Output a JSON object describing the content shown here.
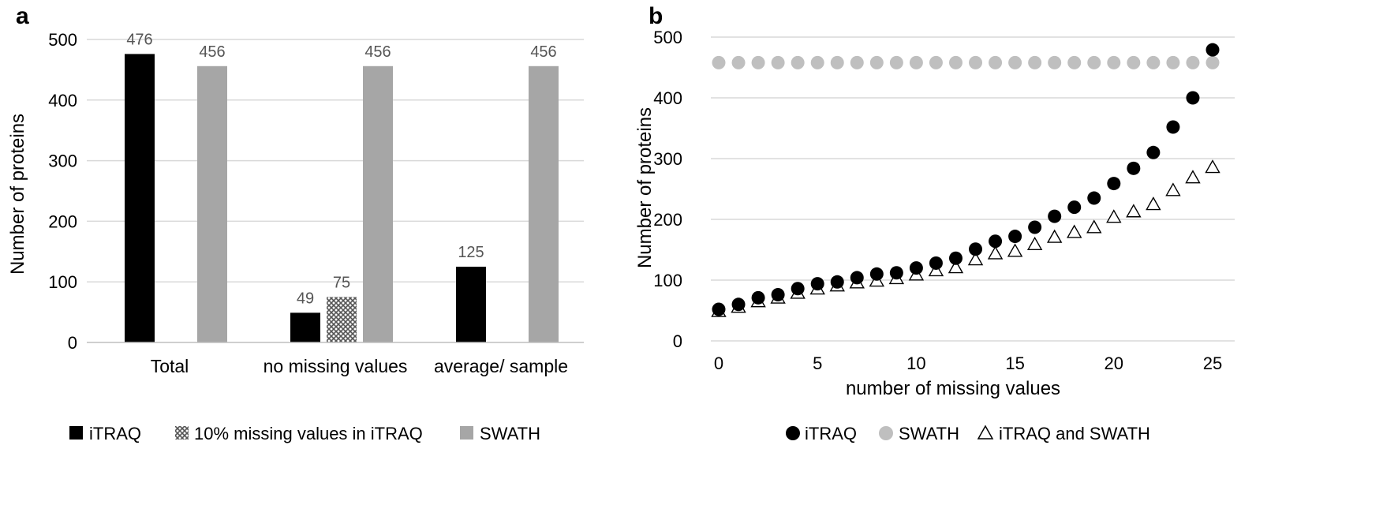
{
  "colors": {
    "itraq": "#000000",
    "swath": "#a6a6a6",
    "swath_marker": "#bfbfbf",
    "missing10": "#808080",
    "grid": "#d9d9d9",
    "label": "#555555"
  },
  "chart_data": [
    {
      "panel": "a",
      "type": "bar",
      "ylabel": "Number of proteins",
      "ylim": [
        0,
        500
      ],
      "yticks": [
        "0",
        "100",
        "200",
        "300",
        "400",
        "500"
      ],
      "categories": [
        "Total",
        "no missing values",
        "average/ sample"
      ],
      "series": [
        {
          "name": "iTRAQ",
          "values": [
            476,
            49,
            125
          ],
          "labels": [
            "476",
            "49",
            "125"
          ]
        },
        {
          "name": "10% missing values in iTRAQ",
          "values": [
            null,
            75,
            null
          ],
          "labels": [
            "",
            "75",
            ""
          ]
        },
        {
          "name": "SWATH",
          "values": [
            456,
            456,
            456
          ],
          "labels": [
            "456",
            "456",
            "456"
          ]
        }
      ],
      "legend": [
        "iTRAQ",
        "10% missing values in iTRAQ",
        "SWATH"
      ],
      "legend_position": "bottom"
    },
    {
      "panel": "b",
      "type": "scatter",
      "xlabel": "number of missing values",
      "ylabel": "Number of proteins",
      "xlim": [
        0,
        25
      ],
      "ylim": [
        0,
        500
      ],
      "xticks": [
        "0",
        "5",
        "10",
        "15",
        "20",
        "25"
      ],
      "yticks": [
        "0",
        "100",
        "200",
        "300",
        "400",
        "500"
      ],
      "x": [
        0,
        1,
        2,
        3,
        4,
        5,
        6,
        7,
        8,
        9,
        10,
        11,
        12,
        13,
        14,
        15,
        16,
        17,
        18,
        19,
        20,
        21,
        22,
        23,
        24,
        25
      ],
      "series": [
        {
          "name": "iTRAQ",
          "marker": "filled-circle",
          "values": [
            52,
            60,
            71,
            76,
            86,
            94,
            97,
            104,
            110,
            112,
            120,
            128,
            136,
            151,
            164,
            172,
            187,
            205,
            220,
            235,
            259,
            284,
            310,
            352,
            400,
            479
          ]
        },
        {
          "name": "SWATH",
          "marker": "gray-circle",
          "values": [
            458,
            458,
            458,
            458,
            458,
            458,
            458,
            458,
            458,
            458,
            458,
            458,
            458,
            458,
            458,
            458,
            458,
            458,
            458,
            458,
            458,
            458,
            458,
            458,
            458,
            458
          ]
        },
        {
          "name": "iTRAQ and SWATH",
          "marker": "open-triangle",
          "values": [
            48,
            55,
            64,
            70,
            78,
            85,
            90,
            95,
            98,
            102,
            108,
            115,
            120,
            133,
            143,
            147,
            158,
            170,
            178,
            186,
            203,
            212,
            224,
            247,
            268,
            285
          ]
        }
      ],
      "legend": [
        "iTRAQ",
        "SWATH",
        "iTRAQ and SWATH"
      ],
      "legend_position": "bottom"
    }
  ]
}
